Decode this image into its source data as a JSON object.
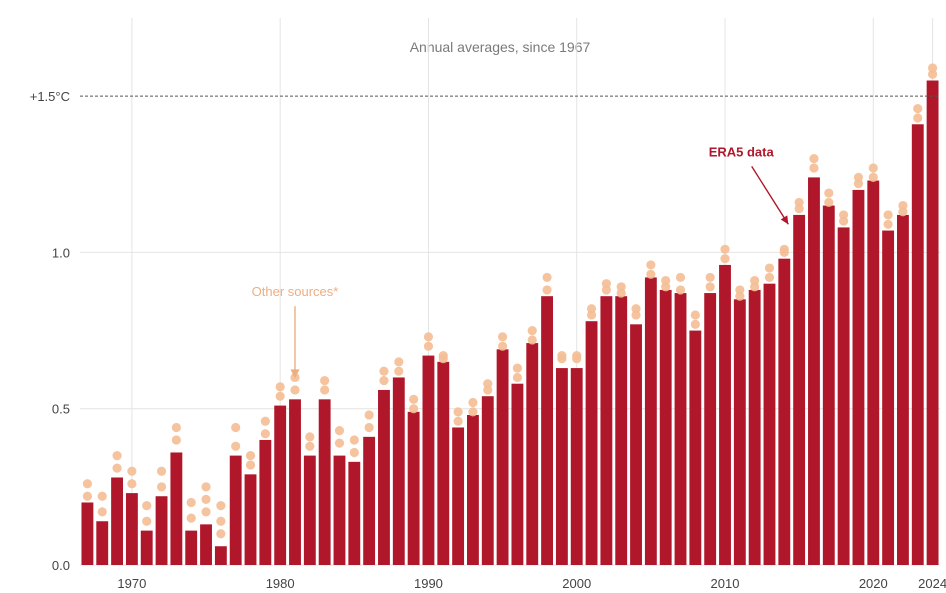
{
  "chart_data": {
    "type": "bar",
    "subtitle": "Annual averages, since 1967",
    "x": [
      1967,
      1968,
      1969,
      1970,
      1971,
      1972,
      1973,
      1974,
      1975,
      1976,
      1977,
      1978,
      1979,
      1980,
      1981,
      1982,
      1983,
      1984,
      1985,
      1986,
      1987,
      1988,
      1989,
      1990,
      1991,
      1992,
      1993,
      1994,
      1995,
      1996,
      1997,
      1998,
      1999,
      2000,
      2001,
      2002,
      2003,
      2004,
      2005,
      2006,
      2007,
      2008,
      2009,
      2010,
      2011,
      2012,
      2013,
      2014,
      2015,
      2016,
      2017,
      2018,
      2019,
      2020,
      2021,
      2022,
      2023,
      2024
    ],
    "series": [
      {
        "name": "ERA5 data",
        "values": [
          0.2,
          0.14,
          0.28,
          0.23,
          0.11,
          0.22,
          0.36,
          0.11,
          0.13,
          0.06,
          0.35,
          0.29,
          0.4,
          0.51,
          0.53,
          0.35,
          0.53,
          0.35,
          0.33,
          0.41,
          0.56,
          0.6,
          0.49,
          0.67,
          0.65,
          0.44,
          0.48,
          0.54,
          0.69,
          0.58,
          0.71,
          0.86,
          0.63,
          0.63,
          0.78,
          0.86,
          0.86,
          0.77,
          0.92,
          0.88,
          0.87,
          0.75,
          0.87,
          0.96,
          0.85,
          0.88,
          0.9,
          0.98,
          1.12,
          1.24,
          1.15,
          1.08,
          1.2,
          1.23,
          1.07,
          1.12,
          1.41,
          1.55
        ]
      },
      {
        "name": "Other sources*",
        "points": [
          [
            1967,
            [
              0.22,
              0.26
            ]
          ],
          [
            1968,
            [
              0.17,
              0.22
            ]
          ],
          [
            1969,
            [
              0.31,
              0.35
            ]
          ],
          [
            1970,
            [
              0.26,
              0.3
            ]
          ],
          [
            1971,
            [
              0.14,
              0.19
            ]
          ],
          [
            1972,
            [
              0.25,
              0.3
            ]
          ],
          [
            1973,
            [
              0.4,
              0.44
            ]
          ],
          [
            1974,
            [
              0.15,
              0.2
            ]
          ],
          [
            1975,
            [
              0.17,
              0.21,
              0.25
            ]
          ],
          [
            1976,
            [
              0.1,
              0.14,
              0.19
            ]
          ],
          [
            1977,
            [
              0.38,
              0.44
            ]
          ],
          [
            1978,
            [
              0.32,
              0.35
            ]
          ],
          [
            1979,
            [
              0.42,
              0.46
            ]
          ],
          [
            1980,
            [
              0.54,
              0.57
            ]
          ],
          [
            1981,
            [
              0.56,
              0.6
            ]
          ],
          [
            1982,
            [
              0.38,
              0.41
            ]
          ],
          [
            1983,
            [
              0.56,
              0.59
            ]
          ],
          [
            1984,
            [
              0.39,
              0.43
            ]
          ],
          [
            1985,
            [
              0.36,
              0.4
            ]
          ],
          [
            1986,
            [
              0.44,
              0.48
            ]
          ],
          [
            1987,
            [
              0.59,
              0.62
            ]
          ],
          [
            1988,
            [
              0.62,
              0.65
            ]
          ],
          [
            1989,
            [
              0.5,
              0.53
            ]
          ],
          [
            1990,
            [
              0.7,
              0.73
            ]
          ],
          [
            1991,
            [
              0.66,
              0.67
            ]
          ],
          [
            1992,
            [
              0.46,
              0.49
            ]
          ],
          [
            1993,
            [
              0.49,
              0.52
            ]
          ],
          [
            1994,
            [
              0.56,
              0.58
            ]
          ],
          [
            1995,
            [
              0.7,
              0.73
            ]
          ],
          [
            1996,
            [
              0.6,
              0.63
            ]
          ],
          [
            1997,
            [
              0.72,
              0.75
            ]
          ],
          [
            1998,
            [
              0.88,
              0.92
            ]
          ],
          [
            1999,
            [
              0.66,
              0.67
            ]
          ],
          [
            2000,
            [
              0.66,
              0.67
            ]
          ],
          [
            2001,
            [
              0.8,
              0.82
            ]
          ],
          [
            2002,
            [
              0.88,
              0.9
            ]
          ],
          [
            2003,
            [
              0.87,
              0.89
            ]
          ],
          [
            2004,
            [
              0.8,
              0.82
            ]
          ],
          [
            2005,
            [
              0.93,
              0.96
            ]
          ],
          [
            2006,
            [
              0.89,
              0.91
            ]
          ],
          [
            2007,
            [
              0.88,
              0.92
            ]
          ],
          [
            2008,
            [
              0.77,
              0.8
            ]
          ],
          [
            2009,
            [
              0.89,
              0.92
            ]
          ],
          [
            2010,
            [
              0.98,
              1.01
            ]
          ],
          [
            2011,
            [
              0.86,
              0.88
            ]
          ],
          [
            2012,
            [
              0.89,
              0.91
            ]
          ],
          [
            2013,
            [
              0.92,
              0.95
            ]
          ],
          [
            2014,
            [
              1.0,
              1.01
            ]
          ],
          [
            2015,
            [
              1.14,
              1.16
            ]
          ],
          [
            2016,
            [
              1.27,
              1.3
            ]
          ],
          [
            2017,
            [
              1.16,
              1.19
            ]
          ],
          [
            2018,
            [
              1.1,
              1.12
            ]
          ],
          [
            2019,
            [
              1.22,
              1.24
            ]
          ],
          [
            2020,
            [
              1.24,
              1.27
            ]
          ],
          [
            2021,
            [
              1.09,
              1.12
            ]
          ],
          [
            2022,
            [
              1.13,
              1.15
            ]
          ],
          [
            2023,
            [
              1.43,
              1.46
            ]
          ],
          [
            2024,
            [
              1.57,
              1.59
            ]
          ]
        ]
      }
    ],
    "reference_line": {
      "value": 1.5,
      "label": "+1.5°C"
    },
    "y_ticks": [
      {
        "value": 0.0,
        "label": "0.0"
      },
      {
        "value": 0.5,
        "label": "0.5"
      },
      {
        "value": 1.0,
        "label": "1.0"
      },
      {
        "value": 1.5,
        "label": "+1.5°C"
      }
    ],
    "x_ticks": [
      {
        "value": 1970,
        "label": "1970"
      },
      {
        "value": 1980,
        "label": "1980"
      },
      {
        "value": 1990,
        "label": "1990"
      },
      {
        "value": 2000,
        "label": "2000"
      },
      {
        "value": 2010,
        "label": "2010"
      },
      {
        "value": 2020,
        "label": "2020"
      },
      {
        "value": 2024,
        "label": "2024"
      }
    ],
    "ylim": [
      0,
      1.75
    ],
    "xlim": [
      1966.5,
      2024.5
    ],
    "grid": true,
    "annotations": [
      {
        "text": "ERA5 data",
        "series": "ERA5 data",
        "x": 2014.5,
        "y": 1.32
      },
      {
        "text": "Other sources*",
        "series": "Other sources*",
        "x": 1981,
        "y": 0.86
      }
    ],
    "colors": {
      "bar": "#b0172a",
      "dots": "#f4be95",
      "era5_label": "#b0172a",
      "other_label": "#efae80",
      "reference": "#555555",
      "grid": "#e4e4e4",
      "axis_text": "#444444",
      "subtitle": "#7a7a7a"
    }
  }
}
